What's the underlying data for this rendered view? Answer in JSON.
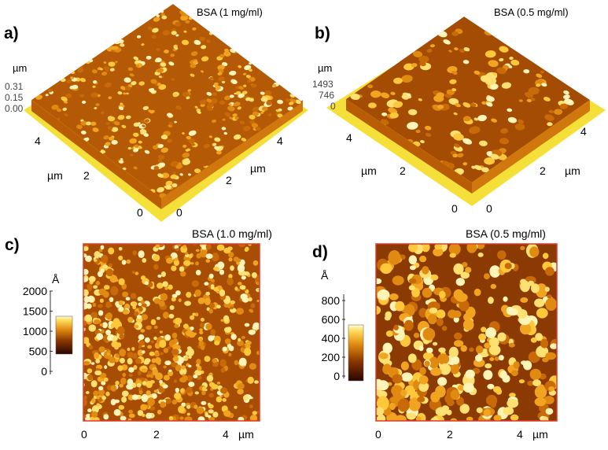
{
  "panels": {
    "a": {
      "letter": "a)",
      "title": "BSA (1 mg/ml)",
      "z_unit": "µm",
      "z_ticks": [
        "0.31",
        "0.15",
        "0.00"
      ],
      "left_ticks": [
        "4",
        "2",
        "0"
      ],
      "right_ticks": [
        "0",
        "2",
        "4"
      ],
      "left_unit": "µm",
      "right_unit": "µm"
    },
    "b": {
      "letter": "b)",
      "title": "BSA (0.5 mg/ml)",
      "z_unit": "µm",
      "z_ticks": [
        "1493",
        "746",
        "0"
      ],
      "left_ticks": [
        "4",
        "2",
        "0"
      ],
      "right_ticks": [
        "0",
        "2",
        "4"
      ],
      "left_unit": "µm",
      "right_unit": "µm"
    },
    "c": {
      "letter": "c)",
      "title": "BSA (1.0 mg/ml)",
      "z_unit": "Å",
      "z_ticks": [
        "2000",
        "1500",
        "1000",
        "500",
        "0"
      ],
      "x_ticks": [
        "0",
        "2",
        "4"
      ],
      "x_unit": "µm"
    },
    "d": {
      "letter": "d)",
      "title": "BSA (0.5 mg/ml)",
      "z_unit": "Å",
      "z_ticks": [
        "800",
        "600",
        "400",
        "200",
        "0"
      ],
      "x_ticks": [
        "0",
        "2",
        "4"
      ],
      "x_unit": "µm"
    }
  },
  "colors": {
    "dark": "#3a0a00",
    "mid": "#b85a00",
    "base": "#c06a08",
    "bright": "#ffd24a",
    "highlight": "#fff6c0",
    "floor": "#f5e03a",
    "border": "#e03a2a",
    "slab": "#c7690a"
  }
}
